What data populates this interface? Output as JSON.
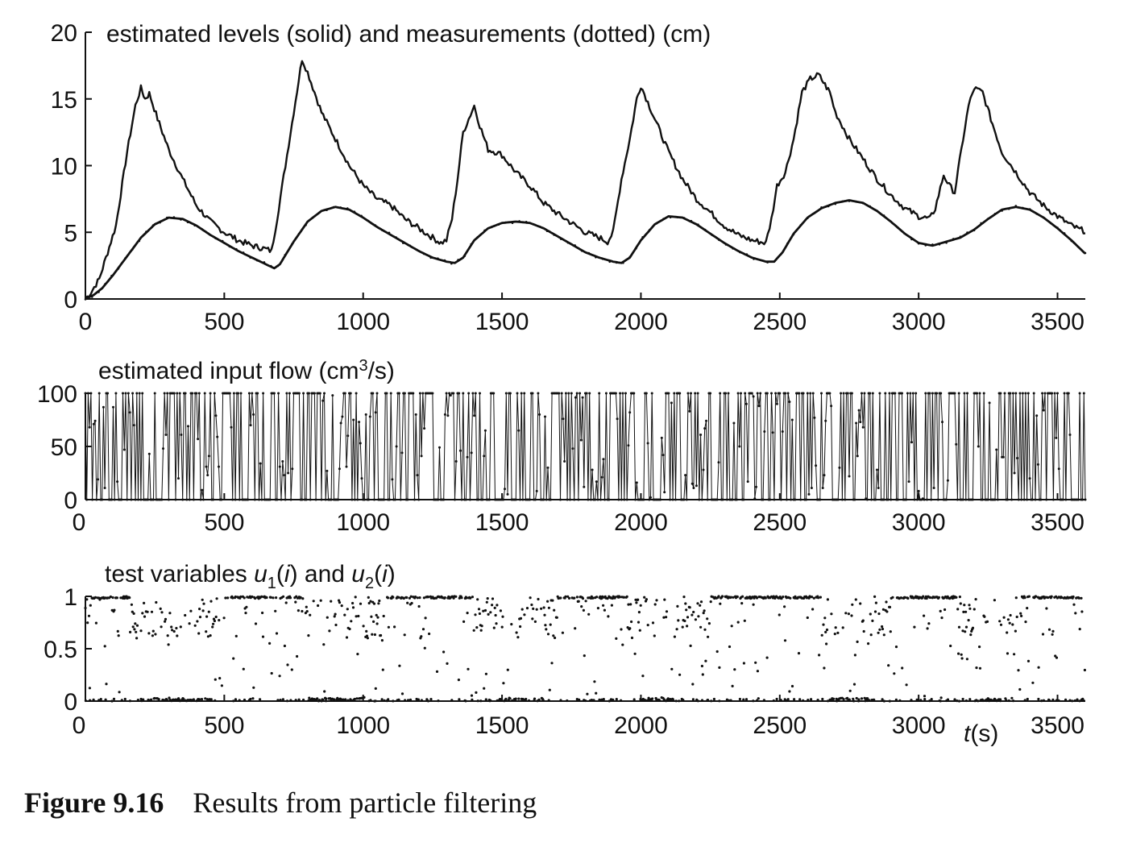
{
  "caption": {
    "number": "Figure 9.16",
    "text": "Results from particle filtering"
  },
  "x_axis_label": {
    "italic": "t",
    "rest": "(s)"
  },
  "chart_data": [
    {
      "type": "line",
      "title": "estimated levels (solid) and measurements (dotted) (cm)",
      "xlim": [
        0,
        3600
      ],
      "ylim": [
        0,
        20
      ],
      "xticks": [
        "0",
        "500",
        "1000",
        "1500",
        "2000",
        "2500",
        "3000",
        "3500"
      ],
      "yticks": [
        "0",
        "5",
        "10",
        "15",
        "20"
      ],
      "series": [
        {
          "style": "solid",
          "x": [
            0,
            20,
            50,
            80,
            110,
            150,
            180,
            200,
            215,
            230,
            260,
            300,
            350,
            400,
            450,
            500,
            550,
            600,
            640,
            670,
            690,
            720,
            750,
            780,
            800,
            850,
            900,
            950,
            1000,
            1050,
            1100,
            1150,
            1200,
            1250,
            1280,
            1300,
            1320,
            1340,
            1360,
            1380,
            1400,
            1420,
            1450,
            1480,
            1500,
            1550,
            1600,
            1650,
            1700,
            1750,
            1800,
            1850,
            1880,
            1900,
            1930,
            1960,
            1985,
            2000,
            2050,
            2100,
            2150,
            2200,
            2250,
            2300,
            2350,
            2400,
            2450,
            2470,
            2490,
            2520,
            2550,
            2580,
            2610,
            2640,
            2680,
            2700,
            2750,
            2800,
            2850,
            2900,
            2950,
            3000,
            3040,
            3060,
            3090,
            3110,
            3130,
            3160,
            3180,
            3200,
            3230,
            3260,
            3300,
            3350,
            3400,
            3450,
            3500,
            3550,
            3580,
            3600
          ],
          "y": [
            0,
            0.5,
            1.5,
            3.5,
            5.5,
            11,
            14.5,
            15.8,
            15,
            15.4,
            13.5,
            11.2,
            9,
            7,
            5.8,
            5,
            4.4,
            4,
            3.8,
            3.6,
            6,
            10,
            14,
            18,
            17,
            14,
            12,
            10,
            8.5,
            7.5,
            7,
            6,
            5.3,
            4.6,
            4.2,
            4.4,
            6,
            9,
            12.5,
            13.5,
            14.5,
            13,
            11.2,
            11,
            10.8,
            9.5,
            8.5,
            7.2,
            6.4,
            5.7,
            5,
            4.6,
            4.3,
            5,
            9,
            12,
            15,
            16,
            13.5,
            11,
            9,
            7.5,
            6.5,
            5.5,
            4.8,
            4.4,
            4.2,
            6,
            8.5,
            9.5,
            12,
            15.5,
            16.5,
            16.8,
            15.5,
            14,
            12,
            10.5,
            9,
            7.8,
            6.8,
            6.2,
            6,
            6.8,
            9.3,
            8.5,
            8,
            12,
            14.5,
            15.8,
            15.5,
            13.5,
            11,
            9.5,
            8,
            7,
            6.2,
            5.5,
            5.2,
            5.1
          ]
        },
        {
          "style": "dotted",
          "x": [
            0,
            30,
            60,
            100,
            150,
            200,
            250,
            300,
            350,
            400,
            450,
            500,
            550,
            600,
            650,
            680,
            700,
            750,
            800,
            850,
            900,
            950,
            1000,
            1050,
            1100,
            1150,
            1200,
            1250,
            1300,
            1330,
            1360,
            1400,
            1450,
            1500,
            1550,
            1600,
            1650,
            1700,
            1750,
            1800,
            1850,
            1900,
            1930,
            1960,
            2000,
            2050,
            2100,
            2150,
            2200,
            2250,
            2300,
            2350,
            2400,
            2450,
            2480,
            2510,
            2550,
            2600,
            2650,
            2700,
            2750,
            2800,
            2850,
            2900,
            2950,
            3000,
            3050,
            3100,
            3150,
            3200,
            3250,
            3300,
            3350,
            3400,
            3450,
            3500,
            3550,
            3600
          ],
          "y": [
            0,
            0.3,
            0.8,
            1.8,
            3.2,
            4.6,
            5.6,
            6.1,
            6,
            5.5,
            4.8,
            4.2,
            3.6,
            3.1,
            2.6,
            2.3,
            2.6,
            4.3,
            5.8,
            6.6,
            6.9,
            6.7,
            6.1,
            5.4,
            4.8,
            4.2,
            3.6,
            3.1,
            2.8,
            2.7,
            3.1,
            4.4,
            5.3,
            5.7,
            5.8,
            5.7,
            5.3,
            4.7,
            4.1,
            3.5,
            3.1,
            2.8,
            2.7,
            3.1,
            4.4,
            5.6,
            6.2,
            6.1,
            5.6,
            4.9,
            4.2,
            3.6,
            3.1,
            2.8,
            2.8,
            3.5,
            4.9,
            6.1,
            6.8,
            7.2,
            7.4,
            7.2,
            6.6,
            5.8,
            4.9,
            4.2,
            4,
            4.3,
            4.6,
            5.2,
            6,
            6.7,
            6.9,
            6.7,
            6.1,
            5.3,
            4.4,
            3.4
          ]
        }
      ]
    },
    {
      "type": "line",
      "title": {
        "pre": "estimated input flow (cm",
        "sup": "3",
        "post": "/s)"
      },
      "xlim": [
        0,
        3600
      ],
      "ylim": [
        0,
        100
      ],
      "xticks": [
        "0",
        "500",
        "1000",
        "1500",
        "2000",
        "2500",
        "3000",
        "3500"
      ],
      "yticks": [
        "0",
        "50",
        "100"
      ],
      "marker": "dot",
      "sampling_interval_s": 5,
      "distribution": "random flow samples switching between 0 and 100 cm³/s; denser high values during filling phases"
    },
    {
      "type": "scatter",
      "title": {
        "segments": [
          "test variables ",
          "u",
          "1",
          "(",
          "i",
          ") and ",
          "u",
          "2",
          "(",
          "i",
          ")"
        ]
      },
      "xlim": [
        0,
        3600
      ],
      "ylim": [
        0,
        1
      ],
      "xticks": [
        "0",
        "500",
        "1000",
        "1500",
        "2000",
        "2500",
        "3000",
        "3500"
      ],
      "yticks": [
        "0",
        "0.5",
        "1"
      ],
      "distribution": "uniform random test variables in [0, 1]; clusters at 1 and 0 during phases"
    }
  ]
}
